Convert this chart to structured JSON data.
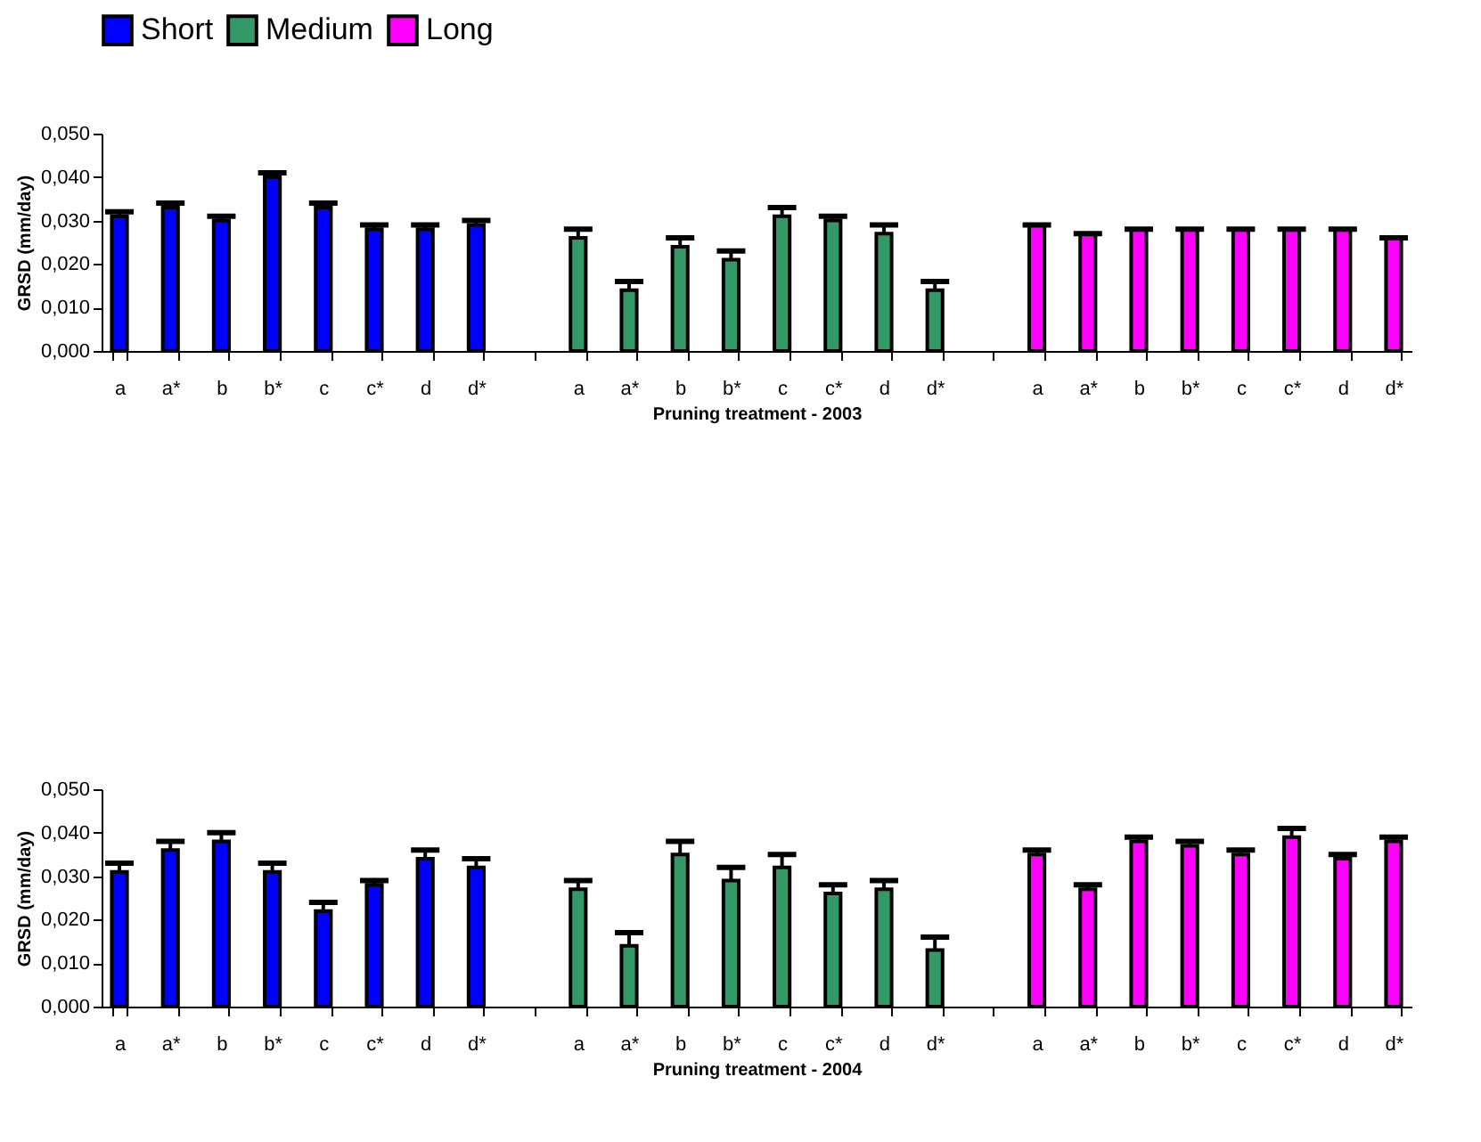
{
  "chart_data": [
    {
      "type": "bar",
      "xlabel": "Pruning treatment - 2003",
      "ylabel": "GRSD (mm/day)",
      "categories": [
        "a",
        "a*",
        "b",
        "b*",
        "c",
        "c*",
        "d",
        "d*",
        null,
        "a",
        "a*",
        "b",
        "b*",
        "c",
        "c*",
        "d",
        "d*",
        null,
        "a",
        "a*",
        "b",
        "b*",
        "c",
        "c*",
        "d",
        "d*"
      ],
      "series": [
        {
          "name": "Short",
          "color": "#0000ff",
          "values": [
            0.031,
            0.033,
            0.03,
            0.04,
            0.033,
            0.028,
            0.028,
            0.029,
            null,
            null,
            null,
            null,
            null,
            null,
            null,
            null,
            null,
            null,
            null,
            null,
            null,
            null,
            null,
            null,
            null,
            null
          ],
          "errors": [
            [
              0.031,
              0.032
            ],
            [
              0.033,
              0.034
            ],
            [
              0.03,
              0.031
            ],
            [
              0.04,
              0.041
            ],
            [
              0.033,
              0.034
            ],
            [
              0.028,
              0.029
            ],
            [
              0.028,
              0.029
            ],
            [
              0.029,
              0.03
            ],
            null,
            null,
            null,
            null,
            null,
            null,
            null,
            null,
            null,
            null,
            null,
            null,
            null,
            null,
            null,
            null,
            null,
            null
          ]
        },
        {
          "name": "Medium",
          "color": "#339966",
          "values": [
            null,
            null,
            null,
            null,
            null,
            null,
            null,
            null,
            null,
            0.026,
            0.014,
            0.024,
            0.021,
            0.031,
            0.03,
            0.027,
            0.014,
            null,
            null,
            null,
            null,
            null,
            null,
            null,
            null,
            null
          ],
          "errors": [
            null,
            null,
            null,
            null,
            null,
            null,
            null,
            null,
            null,
            [
              0.026,
              0.028
            ],
            [
              0.014,
              0.016
            ],
            [
              0.024,
              0.026
            ],
            [
              0.021,
              0.023
            ],
            [
              0.031,
              0.033
            ],
            [
              0.03,
              0.031
            ],
            [
              0.027,
              0.029
            ],
            [
              0.014,
              0.016
            ],
            null,
            null,
            null,
            null,
            null,
            null,
            null,
            null,
            null
          ]
        },
        {
          "name": "Long",
          "color": "#ff00ff",
          "values": [
            null,
            null,
            null,
            null,
            null,
            null,
            null,
            null,
            null,
            null,
            null,
            null,
            null,
            null,
            null,
            null,
            null,
            null,
            0.029,
            0.027,
            0.028,
            0.028,
            0.028,
            0.028,
            0.028,
            0.026
          ],
          "errors": [
            null,
            null,
            null,
            null,
            null,
            null,
            null,
            null,
            null,
            null,
            null,
            null,
            null,
            null,
            null,
            null,
            null,
            null,
            [
              0.029,
              0.029
            ],
            [
              0.027,
              0.027
            ],
            [
              0.028,
              0.028
            ],
            [
              0.028,
              0.028
            ],
            [
              0.028,
              0.028
            ],
            [
              0.028,
              0.028
            ],
            [
              0.028,
              0.028
            ],
            [
              0.026,
              0.026
            ]
          ]
        }
      ],
      "ylim": [
        0,
        0.05
      ],
      "yticks": [
        {
          "value": 0,
          "label": "0,000"
        },
        {
          "value": 0.01,
          "label": "0,010"
        },
        {
          "value": 0.02,
          "label": "0,020"
        },
        {
          "value": 0.03,
          "label": "0,030"
        },
        {
          "value": 0.04,
          "label": "0,040"
        },
        {
          "value": 0.05,
          "label": "0,050"
        }
      ],
      "grid": false,
      "legend": "top"
    },
    {
      "type": "bar",
      "xlabel": "Pruning treatment - 2004",
      "ylabel": "GRSD (mm/day)",
      "categories": [
        "a",
        "a*",
        "b",
        "b*",
        "c",
        "c*",
        "d",
        "d*",
        null,
        "a",
        "a*",
        "b",
        "b*",
        "c",
        "c*",
        "d",
        "d*",
        null,
        "a",
        "a*",
        "b",
        "b*",
        "c",
        "c*",
        "d",
        "d*"
      ],
      "series": [
        {
          "name": "Short",
          "color": "#0000ff",
          "values": [
            0.031,
            0.036,
            0.038,
            0.031,
            0.022,
            0.028,
            0.034,
            0.032,
            null,
            null,
            null,
            null,
            null,
            null,
            null,
            null,
            null,
            null,
            null,
            null,
            null,
            null,
            null,
            null,
            null,
            null
          ],
          "errors": [
            [
              0.031,
              0.033
            ],
            [
              0.036,
              0.038
            ],
            [
              0.038,
              0.04
            ],
            [
              0.031,
              0.033
            ],
            [
              0.022,
              0.024
            ],
            [
              0.028,
              0.029
            ],
            [
              0.034,
              0.036
            ],
            [
              0.032,
              0.034
            ],
            null,
            null,
            null,
            null,
            null,
            null,
            null,
            null,
            null,
            null,
            null,
            null,
            null,
            null,
            null,
            null,
            null,
            null
          ]
        },
        {
          "name": "Medium",
          "color": "#339966",
          "values": [
            null,
            null,
            null,
            null,
            null,
            null,
            null,
            null,
            null,
            0.027,
            0.014,
            0.035,
            0.029,
            0.032,
            0.026,
            0.027,
            0.013,
            null,
            null,
            null,
            null,
            null,
            null,
            null,
            null,
            null
          ],
          "errors": [
            null,
            null,
            null,
            null,
            null,
            null,
            null,
            null,
            null,
            [
              0.027,
              0.029
            ],
            [
              0.014,
              0.017
            ],
            [
              0.035,
              0.038
            ],
            [
              0.029,
              0.032
            ],
            [
              0.032,
              0.035
            ],
            [
              0.026,
              0.028
            ],
            [
              0.027,
              0.029
            ],
            [
              0.013,
              0.016
            ],
            null,
            null,
            null,
            null,
            null,
            null,
            null,
            null,
            null
          ]
        },
        {
          "name": "Long",
          "color": "#ff00ff",
          "values": [
            null,
            null,
            null,
            null,
            null,
            null,
            null,
            null,
            null,
            null,
            null,
            null,
            null,
            null,
            null,
            null,
            null,
            null,
            0.035,
            0.027,
            0.038,
            0.037,
            0.035,
            0.039,
            0.034,
            0.038
          ],
          "errors": [
            null,
            null,
            null,
            null,
            null,
            null,
            null,
            null,
            null,
            null,
            null,
            null,
            null,
            null,
            null,
            null,
            null,
            null,
            [
              0.035,
              0.036
            ],
            [
              0.027,
              0.028
            ],
            [
              0.038,
              0.039
            ],
            [
              0.037,
              0.038
            ],
            [
              0.035,
              0.036
            ],
            [
              0.039,
              0.041
            ],
            [
              0.034,
              0.035
            ],
            [
              0.038,
              0.039
            ]
          ]
        }
      ],
      "ylim": [
        0,
        0.05
      ],
      "yticks": [
        {
          "value": 0,
          "label": "0,000"
        },
        {
          "value": 0.01,
          "label": "0,010"
        },
        {
          "value": 0.02,
          "label": "0,020"
        },
        {
          "value": 0.03,
          "label": "0,030"
        },
        {
          "value": 0.04,
          "label": "0,040"
        },
        {
          "value": 0.05,
          "label": "0,050"
        }
      ],
      "grid": false,
      "legend": false
    }
  ]
}
